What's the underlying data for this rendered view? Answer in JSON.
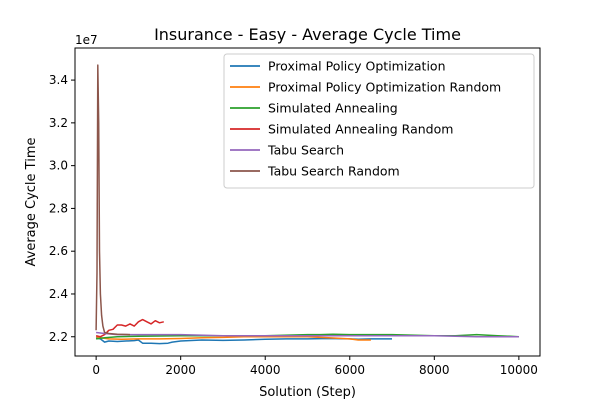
{
  "chart_data": {
    "type": "line",
    "title": "Insurance - Easy - Average Cycle Time",
    "xlabel": "Solution (Step)",
    "ylabel": "Average Cycle Time",
    "y_offset_label": "1e7",
    "xlim": [
      -500,
      10500
    ],
    "ylim": [
      2.11,
      3.55
    ],
    "x_ticks": [
      0,
      2000,
      4000,
      6000,
      8000,
      10000
    ],
    "x_tick_labels": [
      "0",
      "2000",
      "4000",
      "6000",
      "8000",
      "10000"
    ],
    "y_ticks": [
      2.2,
      2.4,
      2.6,
      2.8,
      3.0,
      3.2,
      3.4
    ],
    "y_tick_labels": [
      "2.2",
      "2.4",
      "2.6",
      "2.8",
      "3.0",
      "3.2",
      "3.4"
    ],
    "grid": false,
    "legend_position": "top-right",
    "series": [
      {
        "name": "Proximal Policy Optimization",
        "color": "#1f77b4",
        "x": [
          0,
          100,
          200,
          300,
          500,
          700,
          900,
          1000,
          1100,
          1300,
          1500,
          1700,
          1800,
          2000,
          2500,
          3000,
          3500,
          4000,
          4500,
          5000,
          5500,
          6000,
          6200,
          6500,
          7000
        ],
        "y": [
          2.195,
          2.19,
          2.175,
          2.18,
          2.178,
          2.18,
          2.182,
          2.185,
          2.17,
          2.17,
          2.168,
          2.17,
          2.175,
          2.18,
          2.185,
          2.183,
          2.185,
          2.188,
          2.19,
          2.19,
          2.192,
          2.19,
          2.188,
          2.19,
          2.19
        ]
      },
      {
        "name": "Proximal Policy Optimization Random",
        "color": "#ff7f0e",
        "x": [
          0,
          100,
          300,
          600,
          1000,
          1500,
          2000,
          2500,
          3000,
          3500,
          4000,
          4500,
          5000,
          5500,
          6000,
          6200,
          6500
        ],
        "y": [
          2.2,
          2.195,
          2.19,
          2.188,
          2.19,
          2.19,
          2.192,
          2.195,
          2.197,
          2.2,
          2.2,
          2.2,
          2.2,
          2.195,
          2.19,
          2.185,
          2.185
        ]
      },
      {
        "name": "Simulated Annealing",
        "color": "#2ca02c",
        "x": [
          0,
          200,
          500,
          1000,
          2000,
          3000,
          4000,
          5000,
          5300,
          5600,
          6000,
          7000,
          8000,
          8500,
          9000,
          9500,
          10000
        ],
        "y": [
          2.19,
          2.195,
          2.2,
          2.202,
          2.205,
          2.205,
          2.205,
          2.21,
          2.21,
          2.212,
          2.21,
          2.21,
          2.205,
          2.205,
          2.21,
          2.205,
          2.2
        ]
      },
      {
        "name": "Simulated Annealing Random",
        "color": "#d62728",
        "x": [
          0,
          100,
          200,
          300,
          400,
          500,
          600,
          700,
          800,
          900,
          1000,
          1100,
          1200,
          1300,
          1400,
          1500,
          1600
        ],
        "y": [
          2.205,
          2.2,
          2.21,
          2.23,
          2.235,
          2.255,
          2.255,
          2.25,
          2.26,
          2.25,
          2.27,
          2.28,
          2.27,
          2.26,
          2.275,
          2.265,
          2.27
        ]
      },
      {
        "name": "Tabu Search",
        "color": "#9467bd",
        "x": [
          0,
          200,
          500,
          1000,
          2000,
          3000,
          4000,
          5000,
          6000,
          7000,
          8000,
          9000,
          10000
        ],
        "y": [
          2.22,
          2.215,
          2.21,
          2.21,
          2.21,
          2.205,
          2.205,
          2.205,
          2.205,
          2.205,
          2.205,
          2.2,
          2.2
        ]
      },
      {
        "name": "Tabu Search Random",
        "color": "#8c564b",
        "x": [
          0,
          20,
          40,
          60,
          80,
          100,
          130,
          160,
          200,
          300,
          500,
          800
        ],
        "y": [
          2.23,
          2.5,
          3.47,
          3.2,
          2.6,
          2.4,
          2.3,
          2.25,
          2.22,
          2.215,
          2.212,
          2.21
        ]
      }
    ]
  }
}
